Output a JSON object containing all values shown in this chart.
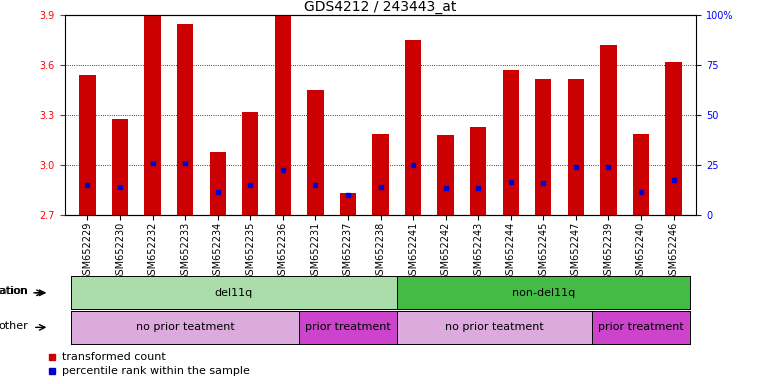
{
  "title": "GDS4212 / 243443_at",
  "samples": [
    "GSM652229",
    "GSM652230",
    "GSM652232",
    "GSM652233",
    "GSM652234",
    "GSM652235",
    "GSM652236",
    "GSM652231",
    "GSM652237",
    "GSM652238",
    "GSM652241",
    "GSM652242",
    "GSM652243",
    "GSM652244",
    "GSM652245",
    "GSM652247",
    "GSM652239",
    "GSM652240",
    "GSM652246"
  ],
  "bar_heights": [
    3.54,
    3.28,
    3.9,
    3.85,
    3.08,
    3.32,
    3.9,
    3.45,
    2.83,
    3.19,
    3.75,
    3.18,
    3.23,
    3.57,
    3.52,
    3.52,
    3.72,
    3.19,
    3.62
  ],
  "blue_dot_y": [
    2.88,
    2.87,
    3.01,
    3.01,
    2.84,
    2.88,
    2.97,
    2.88,
    2.82,
    2.87,
    3.0,
    2.86,
    2.86,
    2.9,
    2.89,
    2.99,
    2.99,
    2.84,
    2.91
  ],
  "ymin": 2.7,
  "ymax": 3.9,
  "yticks_left": [
    2.7,
    3.0,
    3.3,
    3.6,
    3.9
  ],
  "yticks_right_vals": [
    2.7,
    3.0,
    3.3,
    3.6,
    3.9
  ],
  "yticks_right_labels": [
    "0",
    "25",
    "50",
    "75",
    "100%"
  ],
  "bar_color": "#cc0000",
  "dot_color": "#0000cc",
  "bar_width": 0.5,
  "genotype_groups": [
    {
      "text": "del11q",
      "start": 0,
      "end": 9,
      "color": "#aaddaa"
    },
    {
      "text": "non-del11q",
      "start": 10,
      "end": 18,
      "color": "#44bb44"
    }
  ],
  "other_groups": [
    {
      "text": "no prior teatment",
      "start": 0,
      "end": 6,
      "color": "#ddaadd"
    },
    {
      "text": "prior treatment",
      "start": 7,
      "end": 9,
      "color": "#cc44cc"
    },
    {
      "text": "no prior teatment",
      "start": 10,
      "end": 15,
      "color": "#ddaadd"
    },
    {
      "text": "prior treatment",
      "start": 16,
      "end": 18,
      "color": "#cc44cc"
    }
  ],
  "legend_items": [
    {
      "color": "#cc0000",
      "label": "transformed count"
    },
    {
      "color": "#0000cc",
      "label": "percentile rank within the sample"
    }
  ],
  "title_fontsize": 10,
  "tick_fontsize": 7,
  "label_fontsize": 8,
  "annot_fontsize": 8
}
